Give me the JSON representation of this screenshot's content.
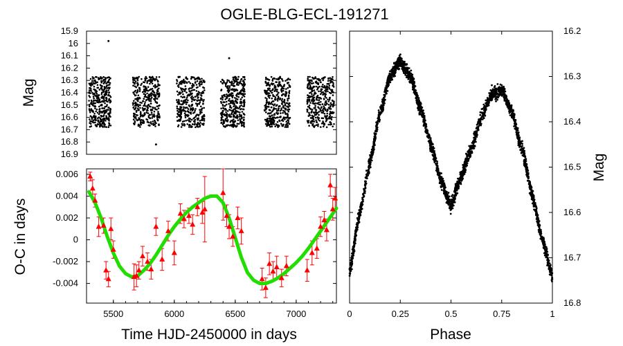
{
  "chart_data": [
    {
      "id": "light-curve",
      "type": "scatter",
      "title": "OGLE-BLG-ECL-191271",
      "xlabel": "",
      "ylabel": "Mag",
      "xlim": [
        5280,
        7330
      ],
      "ylim": [
        16.9,
        15.9
      ],
      "yticks": [
        "15.9",
        "16",
        "16.1",
        "16.2",
        "16.3",
        "16.4",
        "16.5",
        "16.6",
        "16.7",
        "16.8",
        "16.9"
      ],
      "seasons": [
        {
          "start": 5300,
          "end": 5480
        },
        {
          "start": 5660,
          "end": 5880
        },
        {
          "start": 6020,
          "end": 6250
        },
        {
          "start": 6380,
          "end": 6580
        },
        {
          "start": 6740,
          "end": 6950
        },
        {
          "start": 7090,
          "end": 7310
        }
      ],
      "mag_range": [
        16.27,
        16.68
      ],
      "outliers": [
        {
          "x": 5460,
          "y": 15.98
        },
        {
          "x": 5850,
          "y": 16.82
        },
        {
          "x": 6450,
          "y": 16.12
        }
      ]
    },
    {
      "id": "o-c",
      "type": "scatter",
      "xlabel": "Time HJD-2450000 in days",
      "ylabel": "O-C in days",
      "xlim": [
        5280,
        7330
      ],
      "ylim": [
        -0.0058,
        0.0065
      ],
      "xticks": [
        "5500",
        "6000",
        "6500",
        "7000"
      ],
      "yticks": [
        "0.006",
        "0.004",
        "0.002",
        "0",
        "-0.002",
        "-0.004"
      ],
      "points": [
        {
          "x": 5310,
          "y": 0.0058,
          "err": 0.0004
        },
        {
          "x": 5330,
          "y": 0.0047,
          "err": 0.0008
        },
        {
          "x": 5350,
          "y": 0.0036,
          "err": 0.0006
        },
        {
          "x": 5380,
          "y": 0.0012,
          "err": 0.0009
        },
        {
          "x": 5420,
          "y": 0.0013,
          "err": 0.0007
        },
        {
          "x": 5440,
          "y": -0.0028,
          "err": 0.0008
        },
        {
          "x": 5460,
          "y": -0.0036,
          "err": 0.0007
        },
        {
          "x": 5480,
          "y": 0.001,
          "err": 0.001
        },
        {
          "x": 5500,
          "y": -0.0009,
          "err": 0.0008
        },
        {
          "x": 5670,
          "y": -0.0034,
          "err": 0.0012
        },
        {
          "x": 5690,
          "y": -0.0033,
          "err": 0.001
        },
        {
          "x": 5710,
          "y": -0.0028,
          "err": 0.0008
        },
        {
          "x": 5740,
          "y": -0.0015,
          "err": 0.0009
        },
        {
          "x": 5780,
          "y": -0.002,
          "err": 0.0008
        },
        {
          "x": 5810,
          "y": -0.0027,
          "err": 0.0009
        },
        {
          "x": 5850,
          "y": 0.0012,
          "err": 0.0008
        },
        {
          "x": 5900,
          "y": -0.0018,
          "err": 0.001
        },
        {
          "x": 5950,
          "y": 0.0008,
          "err": 0.0009
        },
        {
          "x": 6000,
          "y": -0.0012,
          "err": 0.0011
        },
        {
          "x": 6050,
          "y": 0.0024,
          "err": 0.0009
        },
        {
          "x": 6080,
          "y": 0.0019,
          "err": 0.0008
        },
        {
          "x": 6120,
          "y": 0.0022,
          "err": 0.0007
        },
        {
          "x": 6150,
          "y": 0.0014,
          "err": 0.0009
        },
        {
          "x": 6190,
          "y": 0.003,
          "err": 0.0008
        },
        {
          "x": 6230,
          "y": 0.0025,
          "err": 0.001
        },
        {
          "x": 6250,
          "y": 0.0028,
          "err": 0.003
        },
        {
          "x": 6400,
          "y": 0.0043,
          "err": 0.0025
        },
        {
          "x": 6430,
          "y": 0.0022,
          "err": 0.001
        },
        {
          "x": 6450,
          "y": 0.0012,
          "err": 0.0011
        },
        {
          "x": 6480,
          "y": 0.0003,
          "err": 0.0009
        },
        {
          "x": 6520,
          "y": 0.002,
          "err": 0.001
        },
        {
          "x": 6550,
          "y": 0.0008,
          "err": 0.0012
        },
        {
          "x": 6720,
          "y": -0.0036,
          "err": 0.001
        },
        {
          "x": 6750,
          "y": -0.0044,
          "err": 0.0009
        },
        {
          "x": 6780,
          "y": -0.0022,
          "err": 0.001
        },
        {
          "x": 6810,
          "y": -0.0029,
          "err": 0.0009
        },
        {
          "x": 6840,
          "y": -0.0025,
          "err": 0.001
        },
        {
          "x": 6880,
          "y": -0.0035,
          "err": 0.0008
        },
        {
          "x": 6920,
          "y": -0.0024,
          "err": 0.0009
        },
        {
          "x": 7090,
          "y": -0.0028,
          "err": 0.001
        },
        {
          "x": 7130,
          "y": -0.0012,
          "err": 0.0011
        },
        {
          "x": 7170,
          "y": -0.0008,
          "err": 0.0009
        },
        {
          "x": 7200,
          "y": 0.0012,
          "err": 0.0009
        },
        {
          "x": 7230,
          "y": 0.0018,
          "err": 0.0008
        },
        {
          "x": 7250,
          "y": 0.0009,
          "err": 0.001
        },
        {
          "x": 7280,
          "y": 0.005,
          "err": 0.001
        },
        {
          "x": 7300,
          "y": 0.0028,
          "err": 0.001
        },
        {
          "x": 7320,
          "y": 0.0038,
          "err": 0.001
        }
      ],
      "fit": [
        {
          "x": 5300,
          "y": 0.0044
        },
        {
          "x": 5350,
          "y": 0.0034
        },
        {
          "x": 5400,
          "y": 0.002
        },
        {
          "x": 5450,
          "y": 0.0003
        },
        {
          "x": 5500,
          "y": -0.0012
        },
        {
          "x": 5550,
          "y": -0.0024
        },
        {
          "x": 5600,
          "y": -0.0031
        },
        {
          "x": 5650,
          "y": -0.0034
        },
        {
          "x": 5700,
          "y": -0.0033
        },
        {
          "x": 5750,
          "y": -0.0028
        },
        {
          "x": 5800,
          "y": -0.0022
        },
        {
          "x": 5850,
          "y": -0.0014
        },
        {
          "x": 5900,
          "y": -0.0005
        },
        {
          "x": 5950,
          "y": 0.0004
        },
        {
          "x": 6000,
          "y": 0.0012
        },
        {
          "x": 6050,
          "y": 0.0019
        },
        {
          "x": 6100,
          "y": 0.0025
        },
        {
          "x": 6150,
          "y": 0.003
        },
        {
          "x": 6200,
          "y": 0.0034
        },
        {
          "x": 6250,
          "y": 0.0038
        },
        {
          "x": 6300,
          "y": 0.004
        },
        {
          "x": 6350,
          "y": 0.004
        },
        {
          "x": 6400,
          "y": 0.0034
        },
        {
          "x": 6450,
          "y": 0.002
        },
        {
          "x": 6500,
          "y": 0.0002
        },
        {
          "x": 6550,
          "y": -0.0016
        },
        {
          "x": 6600,
          "y": -0.003
        },
        {
          "x": 6650,
          "y": -0.0037
        },
        {
          "x": 6700,
          "y": -0.004
        },
        {
          "x": 6750,
          "y": -0.004
        },
        {
          "x": 6800,
          "y": -0.0038
        },
        {
          "x": 6850,
          "y": -0.0035
        },
        {
          "x": 6900,
          "y": -0.0031
        },
        {
          "x": 6950,
          "y": -0.0026
        },
        {
          "x": 7000,
          "y": -0.0021
        },
        {
          "x": 7050,
          "y": -0.0015
        },
        {
          "x": 7100,
          "y": -0.0008
        },
        {
          "x": 7150,
          "y": 0.0
        },
        {
          "x": 7200,
          "y": 0.0008
        },
        {
          "x": 7250,
          "y": 0.0016
        },
        {
          "x": 7300,
          "y": 0.0024
        },
        {
          "x": 7330,
          "y": 0.0029
        }
      ],
      "point_color": "#ff0000",
      "fit_color": "#22dd00"
    },
    {
      "id": "phase-curve",
      "type": "scatter",
      "xlabel": "Phase",
      "ylabel": "Mag",
      "xlim": [
        0,
        1
      ],
      "ylim": [
        16.8,
        16.2
      ],
      "xticks": [
        "0",
        "0.25",
        "0.5",
        "0.75",
        "1"
      ],
      "yticks": [
        "16.2",
        "16.3",
        "16.4",
        "16.5",
        "16.6",
        "16.7",
        "16.8"
      ],
      "curve": [
        {
          "phase": 0.0,
          "mag": 16.73
        },
        {
          "phase": 0.05,
          "mag": 16.6
        },
        {
          "phase": 0.1,
          "mag": 16.49
        },
        {
          "phase": 0.15,
          "mag": 16.38
        },
        {
          "phase": 0.2,
          "mag": 16.3
        },
        {
          "phase": 0.25,
          "mag": 16.265
        },
        {
          "phase": 0.3,
          "mag": 16.3
        },
        {
          "phase": 0.35,
          "mag": 16.37
        },
        {
          "phase": 0.4,
          "mag": 16.45
        },
        {
          "phase": 0.45,
          "mag": 16.53
        },
        {
          "phase": 0.5,
          "mag": 16.585
        },
        {
          "phase": 0.55,
          "mag": 16.52
        },
        {
          "phase": 0.6,
          "mag": 16.46
        },
        {
          "phase": 0.65,
          "mag": 16.39
        },
        {
          "phase": 0.7,
          "mag": 16.34
        },
        {
          "phase": 0.75,
          "mag": 16.33
        },
        {
          "phase": 0.8,
          "mag": 16.38
        },
        {
          "phase": 0.85,
          "mag": 16.46
        },
        {
          "phase": 0.9,
          "mag": 16.56
        },
        {
          "phase": 0.95,
          "mag": 16.66
        },
        {
          "phase": 1.0,
          "mag": 16.74
        }
      ],
      "point_color": "#000000"
    }
  ]
}
